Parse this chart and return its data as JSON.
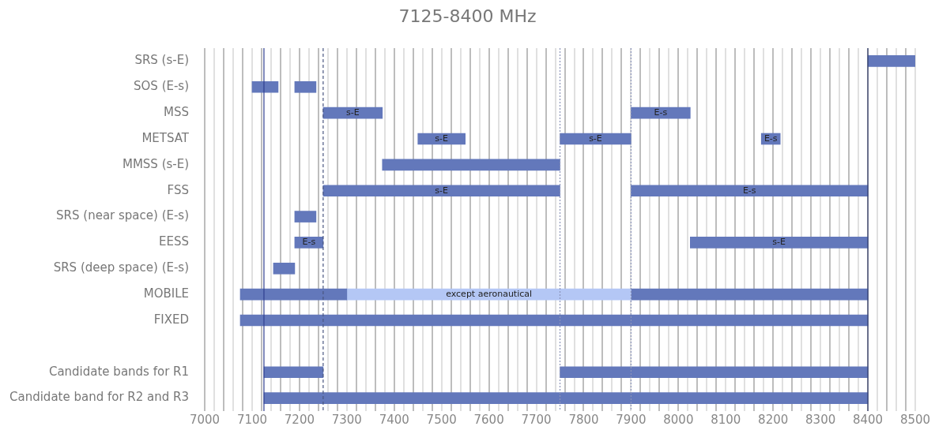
{
  "chart_data": {
    "type": "bar",
    "orientation": "horizontal",
    "title": "7125-8400 MHz",
    "categories": [
      "SRS (s-E)",
      "SOS (E-s)",
      "MSS",
      "METSAT",
      "MMSS (s-E)",
      "FSS",
      "SRS (near space) (E-s)",
      "EESS",
      "SRS (deep space) (E-s)",
      "MOBILE",
      "FIXED",
      null,
      "Candidate bands for R1",
      "Candidate band for R2 and R3"
    ],
    "series": [
      {
        "color": "#6378bb",
        "base": [
          8400,
          7100,
          7250,
          7450,
          7375,
          7250,
          7190,
          7190,
          7145,
          7075,
          7075,
          null,
          7125,
          7125
        ],
        "values": [
          100,
          55,
          125,
          100,
          375,
          500,
          45,
          60,
          45,
          225,
          1325,
          null,
          125,
          1275
        ],
        "value_labels": [
          null,
          null,
          "s-E",
          "s-E",
          null,
          "s-E",
          null,
          "E-s",
          null,
          null,
          null,
          null,
          null,
          null
        ]
      },
      {
        "colors": [
          "#6378bb",
          "#6378bb",
          "#6378bb",
          "#6378bb",
          "#6378bb",
          "#6378bb",
          "#6378bb",
          "#6378bb",
          "#6378bb",
          "#b4c7f5",
          "#6378bb",
          "#6378bb",
          "#6378bb",
          "#6378bb"
        ],
        "base": [
          null,
          7190,
          7900,
          7750,
          null,
          7900,
          null,
          8025,
          null,
          7300,
          null,
          null,
          7750,
          null
        ],
        "values": [
          null,
          45,
          125,
          150,
          null,
          500,
          null,
          375,
          null,
          600,
          null,
          null,
          650,
          null
        ],
        "value_labels": [
          null,
          null,
          "E-s",
          "s-E",
          null,
          "E-s",
          null,
          "s-E",
          null,
          "except aeronautical",
          null,
          null,
          null,
          null
        ]
      },
      {
        "color": "#6378bb",
        "base": [
          null,
          null,
          null,
          8175,
          null,
          null,
          null,
          null,
          null,
          7900,
          null,
          null,
          null,
          null
        ],
        "values": [
          null,
          null,
          null,
          40,
          null,
          null,
          null,
          null,
          null,
          500,
          null,
          null,
          null,
          null
        ],
        "value_labels": [
          null,
          null,
          null,
          "E-s",
          null,
          null,
          null,
          null,
          null,
          null,
          null,
          null,
          null,
          null
        ]
      }
    ],
    "xlim": [
      7000,
      8500
    ],
    "xticks": [
      7000,
      {
        "value": 7020,
        "label": null
      },
      {
        "value": 7040,
        "label": null
      },
      {
        "value": 7060,
        "label": null
      },
      {
        "value": 7080,
        "label": null
      },
      7100,
      {
        "value": 7120,
        "label": null
      },
      {
        "value": 7140,
        "label": null
      },
      {
        "value": 7160,
        "label": null
      },
      {
        "value": 7180,
        "label": null
      },
      7200,
      {
        "value": 7220,
        "label": null
      },
      {
        "value": 7240,
        "label": null
      },
      {
        "value": 7260,
        "label": null
      },
      {
        "value": 7280,
        "label": null
      },
      7300,
      {
        "value": 7320,
        "label": null
      },
      {
        "value": 7340,
        "label": null
      },
      {
        "value": 7360,
        "label": null
      },
      {
        "value": 7380,
        "label": null
      },
      7400,
      {
        "value": 7420,
        "label": null
      },
      {
        "value": 7440,
        "label": null
      },
      {
        "value": 7460,
        "label": null
      },
      {
        "value": 7480,
        "label": null
      },
      7500,
      {
        "value": 7520,
        "label": null
      },
      {
        "value": 7540,
        "label": null
      },
      {
        "value": 7560,
        "label": null
      },
      {
        "value": 7580,
        "label": null
      },
      7600,
      {
        "value": 7620,
        "label": null
      },
      {
        "value": 7640,
        "label": null
      },
      {
        "value": 7660,
        "label": null
      },
      {
        "value": 7680,
        "label": null
      },
      7700,
      {
        "value": 7720,
        "label": null
      },
      {
        "value": 7740,
        "label": null
      },
      {
        "value": 7760,
        "label": null
      },
      {
        "value": 7780,
        "label": null
      },
      7800,
      {
        "value": 7820,
        "label": null
      },
      {
        "value": 7840,
        "label": null
      },
      {
        "value": 7860,
        "label": null
      },
      {
        "value": 7880,
        "label": null
      },
      7900,
      {
        "value": 7920,
        "label": null
      },
      {
        "value": 7940,
        "label": null
      },
      {
        "value": 7960,
        "label": null
      },
      {
        "value": 7980,
        "label": null
      },
      8000,
      {
        "value": 8020,
        "label": null
      },
      {
        "value": 8040,
        "label": null
      },
      {
        "value": 8060,
        "label": null
      },
      {
        "value": 8080,
        "label": null
      },
      8100,
      {
        "value": 8120,
        "label": null
      },
      {
        "value": 8140,
        "label": null
      },
      {
        "value": 8160,
        "label": null
      },
      {
        "value": 8180,
        "label": null
      },
      8200,
      {
        "value": 8220,
        "label": null
      },
      {
        "value": 8240,
        "label": null
      },
      {
        "value": 8260,
        "label": null
      },
      {
        "value": 8280,
        "label": null
      },
      8300,
      {
        "value": 8320,
        "label": null
      },
      {
        "value": 8340,
        "label": null
      },
      {
        "value": 8360,
        "label": null
      },
      {
        "value": 8380,
        "label": null
      },
      8400,
      {
        "value": 8420,
        "label": null
      },
      {
        "value": 8440,
        "label": null
      },
      {
        "value": 8460,
        "label": null
      },
      {
        "value": 8480,
        "label": null
      },
      8500
    ],
    "grid": "x",
    "legend": false,
    "ref_lines": [
      {
        "axis": "x",
        "value": 7125,
        "color": "#2f3f8f",
        "line_style": "solid"
      },
      {
        "axis": "x",
        "value": 7250,
        "color": "#4a5680",
        "line_style": "dashed"
      },
      {
        "axis": "x",
        "value": 7750,
        "color": "#8a93b8",
        "line_style": "dotted"
      },
      {
        "axis": "x",
        "value": 7900,
        "color": "#8a93b8",
        "line_style": "dotted"
      },
      {
        "axis": "x",
        "value": 8400,
        "color": "#2f3a6a",
        "line_style": "solid"
      }
    ]
  }
}
